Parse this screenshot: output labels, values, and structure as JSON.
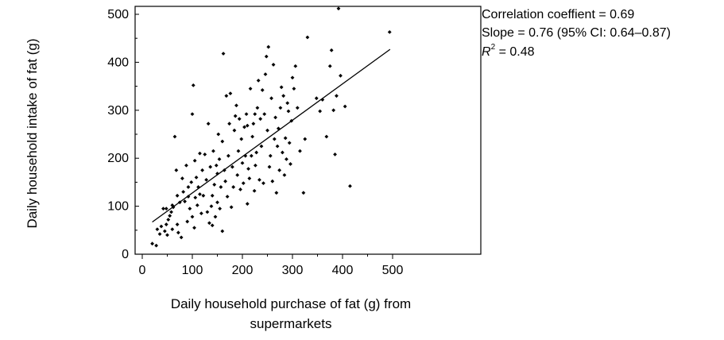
{
  "chart_data": {
    "type": "scatter",
    "title": "",
    "xlabel_lines": [
      "Daily household purchase of fat (g) from",
      "supermarkets"
    ],
    "ylabel": "Daily household intake of fat (g)",
    "xlim": [
      0,
      500
    ],
    "ylim": [
      0,
      500
    ],
    "xticks": [
      0,
      100,
      200,
      300,
      400,
      500
    ],
    "yticks": [
      0,
      100,
      200,
      300,
      400,
      500
    ],
    "grid": false,
    "marker_color": "#000000",
    "regression_line": {
      "x": [
        20,
        495
      ],
      "y": [
        67,
        427
      ]
    },
    "annotations": {
      "correlation": "Correlation coeffient = 0.69",
      "slope": "Slope = 0.76 (95% CI: 0.64–0.87)",
      "r2_symbol": "R",
      "r2_exponent": "2",
      "r2_value": " = 0.48"
    },
    "points": [
      [
        20,
        22
      ],
      [
        28,
        18
      ],
      [
        30,
        52
      ],
      [
        35,
        42
      ],
      [
        38,
        58
      ],
      [
        42,
        95
      ],
      [
        45,
        48
      ],
      [
        48,
        62
      ],
      [
        50,
        40
      ],
      [
        52,
        72
      ],
      [
        55,
        80
      ],
      [
        58,
        88
      ],
      [
        60,
        52
      ],
      [
        62,
        98
      ],
      [
        65,
        245
      ],
      [
        68,
        175
      ],
      [
        70,
        62
      ],
      [
        72,
        45
      ],
      [
        75,
        108
      ],
      [
        78,
        35
      ],
      [
        80,
        158
      ],
      [
        82,
        130
      ],
      [
        85,
        110
      ],
      [
        88,
        185
      ],
      [
        90,
        68
      ],
      [
        92,
        140
      ],
      [
        95,
        95
      ],
      [
        98,
        150
      ],
      [
        100,
        292
      ],
      [
        100,
        78
      ],
      [
        102,
        352
      ],
      [
        104,
        55
      ],
      [
        105,
        195
      ],
      [
        106,
        118
      ],
      [
        108,
        160
      ],
      [
        110,
        102
      ],
      [
        112,
        140
      ],
      [
        115,
        210
      ],
      [
        118,
        85
      ],
      [
        120,
        175
      ],
      [
        122,
        122
      ],
      [
        125,
        208
      ],
      [
        128,
        155
      ],
      [
        130,
        88
      ],
      [
        132,
        272
      ],
      [
        134,
        65
      ],
      [
        136,
        182
      ],
      [
        138,
        100
      ],
      [
        140,
        122
      ],
      [
        142,
        215
      ],
      [
        144,
        145
      ],
      [
        146,
        78
      ],
      [
        148,
        185
      ],
      [
        150,
        168
      ],
      [
        152,
        250
      ],
      [
        154,
        198
      ],
      [
        155,
        95
      ],
      [
        157,
        140
      ],
      [
        160,
        235
      ],
      [
        160,
        48
      ],
      [
        162,
        418
      ],
      [
        164,
        175
      ],
      [
        166,
        152
      ],
      [
        168,
        330
      ],
      [
        170,
        120
      ],
      [
        172,
        205
      ],
      [
        174,
        272
      ],
      [
        176,
        335
      ],
      [
        178,
        98
      ],
      [
        180,
        182
      ],
      [
        182,
        140
      ],
      [
        184,
        258
      ],
      [
        186,
        288
      ],
      [
        188,
        310
      ],
      [
        190,
        165
      ],
      [
        192,
        215
      ],
      [
        194,
        282
      ],
      [
        196,
        135
      ],
      [
        198,
        240
      ],
      [
        200,
        190
      ],
      [
        202,
        148
      ],
      [
        204,
        265
      ],
      [
        206,
        205
      ],
      [
        208,
        292
      ],
      [
        210,
        105
      ],
      [
        212,
        178
      ],
      [
        214,
        158
      ],
      [
        216,
        345
      ],
      [
        218,
        205
      ],
      [
        220,
        245
      ],
      [
        222,
        272
      ],
      [
        224,
        132
      ],
      [
        226,
        185
      ],
      [
        228,
        212
      ],
      [
        230,
        305
      ],
      [
        232,
        362
      ],
      [
        234,
        155
      ],
      [
        236,
        282
      ],
      [
        238,
        225
      ],
      [
        240,
        342
      ],
      [
        242,
        148
      ],
      [
        244,
        292
      ],
      [
        246,
        375
      ],
      [
        248,
        412
      ],
      [
        250,
        258
      ],
      [
        252,
        432
      ],
      [
        254,
        182
      ],
      [
        256,
        205
      ],
      [
        258,
        325
      ],
      [
        260,
        152
      ],
      [
        262,
        395
      ],
      [
        264,
        240
      ],
      [
        266,
        285
      ],
      [
        268,
        128
      ],
      [
        270,
        225
      ],
      [
        272,
        262
      ],
      [
        274,
        175
      ],
      [
        276,
        305
      ],
      [
        278,
        348
      ],
      [
        280,
        212
      ],
      [
        282,
        330
      ],
      [
        284,
        165
      ],
      [
        286,
        242
      ],
      [
        288,
        198
      ],
      [
        290,
        315
      ],
      [
        292,
        298
      ],
      [
        294,
        232
      ],
      [
        296,
        188
      ],
      [
        298,
        278
      ],
      [
        300,
        368
      ],
      [
        303,
        345
      ],
      [
        306,
        392
      ],
      [
        310,
        305
      ],
      [
        315,
        215
      ],
      [
        322,
        128
      ],
      [
        325,
        240
      ],
      [
        330,
        452
      ],
      [
        348,
        325
      ],
      [
        355,
        298
      ],
      [
        360,
        322
      ],
      [
        368,
        245
      ],
      [
        375,
        392
      ],
      [
        378,
        425
      ],
      [
        382,
        300
      ],
      [
        385,
        208
      ],
      [
        388,
        330
      ],
      [
        392,
        512
      ],
      [
        396,
        372
      ],
      [
        405,
        308
      ],
      [
        415,
        142
      ],
      [
        494,
        463
      ],
      [
        60,
        102
      ],
      [
        48,
        95
      ],
      [
        92,
        120
      ],
      [
        140,
        60
      ],
      [
        70,
        122
      ],
      [
        115,
        125
      ],
      [
        150,
        108
      ],
      [
        210,
        268
      ],
      [
        225,
        292
      ]
    ]
  }
}
